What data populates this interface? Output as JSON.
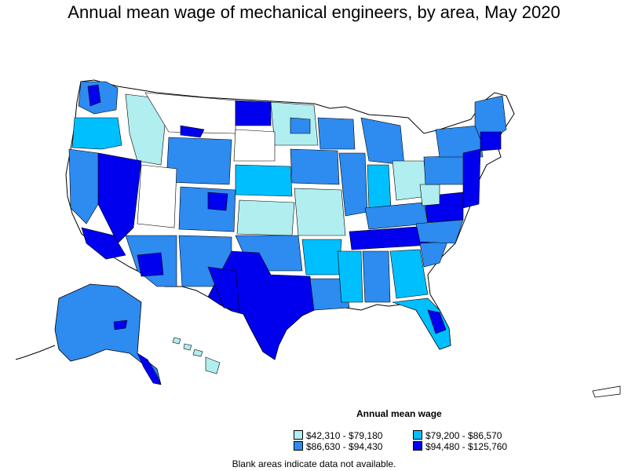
{
  "title": "Annual mean wage of mechanical engineers, by area, May 2020",
  "legend": {
    "title": "Annual mean wage",
    "ranges": [
      {
        "label": "$42,310 - $79,180",
        "color": "#b0eef0"
      },
      {
        "label": "$79,200 - $86,570",
        "color": "#00bfff"
      },
      {
        "label": "$86,630 - $94,430",
        "color": "#2e8bef"
      },
      {
        "label": "$94,480 - $125,760",
        "color": "#0000ee"
      }
    ]
  },
  "footnote": "Blank areas indicate data not available."
}
